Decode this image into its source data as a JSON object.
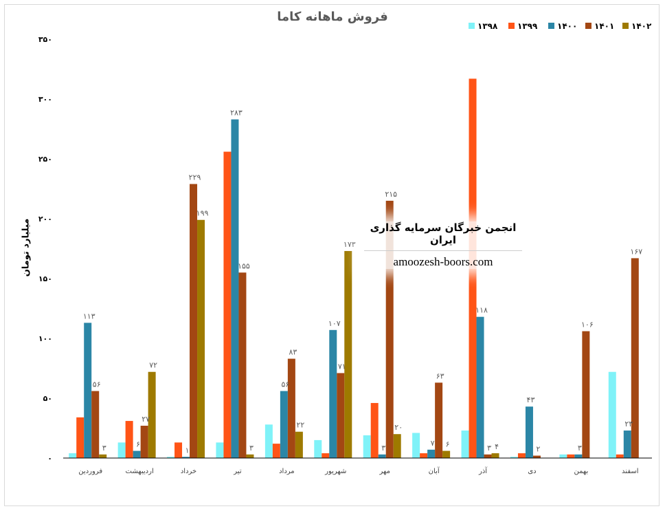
{
  "chart_data": {
    "type": "bar",
    "title": "فروش ماهانه کاما",
    "ylabel": "میلیارد تومان",
    "ylim": [
      0,
      350
    ],
    "yticks": [
      "۰",
      "۵۰",
      "۱۰۰",
      "۱۵۰",
      "۲۰۰",
      "۲۵۰",
      "۳۰۰",
      "۳۵۰"
    ],
    "grid": false,
    "legend": "top-right",
    "categories": [
      "فروردین",
      "اردیبهشت",
      "خرداد",
      "تیر",
      "مرداد",
      "شهریور",
      "مهر",
      "آبان",
      "آذر",
      "دی",
      "بهمن",
      "اسفند"
    ],
    "series": [
      {
        "name": "۱۳۹۸",
        "color": "#7ff2f8",
        "values": [
          4,
          13,
          1,
          13,
          28,
          15,
          19,
          21,
          23,
          1,
          3,
          72
        ],
        "labels": [
          "",
          "",
          "",
          "",
          "",
          "",
          "",
          "",
          "",
          "",
          "",
          ""
        ]
      },
      {
        "name": "۱۳۹۹",
        "color": "#ff5416",
        "values": [
          34,
          31,
          13,
          256,
          12,
          4,
          46,
          4,
          317,
          4,
          3,
          3
        ],
        "labels": [
          "",
          "",
          "",
          "",
          "",
          "",
          "",
          "",
          "",
          "",
          "",
          ""
        ]
      },
      {
        "name": "۱۴۰۰",
        "color": "#2b86a6",
        "values": [
          113,
          6,
          1,
          283,
          56,
          107,
          3,
          7,
          118,
          43,
          3,
          23
        ],
        "labels": [
          "۱۱۳",
          "۶",
          "۱",
          "۲۸۳",
          "۵۶",
          "۱۰۷",
          "۳",
          "۷",
          "۱۱۸",
          "۴۳",
          "۳",
          "۲۳"
        ]
      },
      {
        "name": "۱۴۰۱",
        "color": "#a34713",
        "values": [
          56,
          27,
          229,
          155,
          83,
          71,
          215,
          63,
          3,
          2,
          106,
          167
        ],
        "labels": [
          "۵۶",
          "۲۷",
          "۲۲۹",
          "۱۵۵",
          "۸۳",
          "۷۱",
          "۲۱۵",
          "۶۳",
          "۳",
          "۲",
          "۱۰۶",
          "۱۶۷"
        ]
      },
      {
        "name": "۱۴۰۲",
        "color": "#9e7a00",
        "values": [
          3,
          72,
          199,
          3,
          22,
          173,
          20,
          6,
          4,
          0,
          0,
          0
        ],
        "labels": [
          "۳",
          "۷۲",
          "۱۹۹",
          "۳",
          "۲۲",
          "۱۷۳",
          "۲۰",
          "۶",
          "۴",
          "",
          "",
          ""
        ]
      }
    ]
  },
  "watermark": {
    "org": "انجمن خبرگان سرمایه گذاری ایران",
    "url": "amoozesh-boors.com"
  }
}
